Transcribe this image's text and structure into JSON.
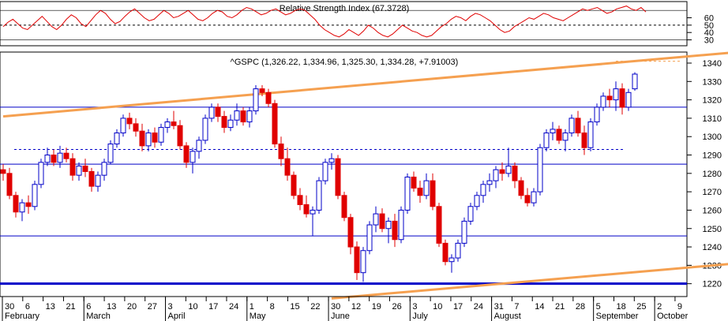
{
  "chart_data": [
    {
      "type": "line",
      "title": "Relative Strength Index (67.3728)",
      "y_ticks": [
        30,
        40,
        50,
        60
      ],
      "ylim": [
        22,
        82
      ],
      "reference_levels": [
        50,
        70,
        30
      ],
      "series": [
        {
          "values": [
            48,
            54,
            58,
            52,
            46,
            44,
            50,
            56,
            62,
            55,
            48,
            44,
            50,
            58,
            64,
            60,
            52,
            48,
            56,
            64,
            70,
            66,
            58,
            52,
            55,
            62,
            68,
            72,
            66,
            60,
            56,
            58,
            64,
            70,
            66,
            60,
            62,
            66,
            70,
            64,
            58,
            56,
            60,
            66,
            70,
            68,
            62,
            60,
            64,
            70,
            74,
            72,
            68,
            64,
            66,
            70,
            72,
            68,
            64,
            66,
            70,
            72,
            70,
            64,
            58,
            50,
            44,
            40,
            36,
            34,
            38,
            44,
            40,
            36,
            42,
            50,
            46,
            40,
            36,
            34,
            38,
            44,
            50,
            46,
            42,
            40,
            36,
            34,
            36,
            42,
            48,
            52,
            58,
            62,
            60,
            56,
            62,
            66,
            64,
            60,
            56,
            50,
            44,
            40,
            42,
            48,
            52,
            56,
            60,
            58,
            62,
            66,
            64,
            60,
            58,
            56,
            60,
            64,
            68,
            72,
            70,
            72,
            74,
            70,
            66,
            68,
            72,
            74,
            76,
            72,
            70,
            74,
            68
          ]
        }
      ]
    },
    {
      "type": "candlestick",
      "title": "^GSPC (1,326.22, 1,334.96, 1,325.30, 1,334.28, +7.91003)",
      "y_ticks": [
        1220,
        1230,
        1240,
        1250,
        1260,
        1270,
        1280,
        1290,
        1300,
        1310,
        1320,
        1330,
        1340
      ],
      "ylim": [
        1213,
        1346
      ],
      "x_tick_labels": [
        "30",
        "6",
        "13",
        "21",
        "6",
        "13",
        "20",
        "27",
        "3",
        "10",
        "17",
        "24",
        "1",
        "8",
        "15",
        "22",
        "30",
        "12",
        "19",
        "26",
        "3",
        "10",
        "17",
        "24",
        "31",
        "7",
        "14",
        "21",
        "28",
        "5",
        "18",
        "25",
        "2",
        "9"
      ],
      "month_labels": [
        "February",
        "March",
        "April",
        "May",
        "June",
        "July",
        "August",
        "September",
        "October"
      ],
      "horizontal_lines": [
        1316,
        1285,
        1246,
        1220
      ],
      "dashed_levels": [
        1293,
        1293
      ],
      "upper_channel": [
        [
          0,
          1311
        ],
        [
          123,
          1348
        ]
      ],
      "lower_channel": [
        [
          52,
          1212
        ],
        [
          163,
          1245
        ]
      ],
      "candles": [
        [
          1282,
          1285,
          1276,
          1280
        ],
        [
          1280,
          1283,
          1266,
          1268
        ],
        [
          1268,
          1270,
          1256,
          1259
        ],
        [
          1259,
          1266,
          1254,
          1264
        ],
        [
          1264,
          1268,
          1258,
          1262
        ],
        [
          1262,
          1276,
          1260,
          1274
        ],
        [
          1274,
          1288,
          1272,
          1286
        ],
        [
          1286,
          1294,
          1284,
          1290
        ],
        [
          1290,
          1293,
          1284,
          1286
        ],
        [
          1286,
          1295,
          1283,
          1291
        ],
        [
          1291,
          1294,
          1286,
          1288
        ],
        [
          1288,
          1291,
          1276,
          1279
        ],
        [
          1279,
          1286,
          1276,
          1284
        ],
        [
          1284,
          1288,
          1278,
          1281
        ],
        [
          1281,
          1283,
          1270,
          1273
        ],
        [
          1273,
          1281,
          1270,
          1279
        ],
        [
          1279,
          1288,
          1276,
          1286
        ],
        [
          1286,
          1298,
          1285,
          1296
        ],
        [
          1296,
          1304,
          1294,
          1302
        ],
        [
          1302,
          1312,
          1300,
          1310
        ],
        [
          1310,
          1313,
          1304,
          1307
        ],
        [
          1307,
          1310,
          1300,
          1303
        ],
        [
          1303,
          1307,
          1292,
          1295
        ],
        [
          1295,
          1304,
          1292,
          1302
        ],
        [
          1302,
          1305,
          1294,
          1297
        ],
        [
          1297,
          1307,
          1295,
          1305
        ],
        [
          1305,
          1310,
          1302,
          1308
        ],
        [
          1308,
          1314,
          1304,
          1306
        ],
        [
          1306,
          1309,
          1293,
          1295
        ],
        [
          1295,
          1297,
          1283,
          1286
        ],
        [
          1286,
          1294,
          1280,
          1292
        ],
        [
          1292,
          1300,
          1288,
          1298
        ],
        [
          1298,
          1312,
          1296,
          1310
        ],
        [
          1310,
          1318,
          1308,
          1316
        ],
        [
          1316,
          1318,
          1308,
          1311
        ],
        [
          1311,
          1314,
          1302,
          1305
        ],
        [
          1305,
          1312,
          1303,
          1309
        ],
        [
          1309,
          1318,
          1306,
          1314
        ],
        [
          1314,
          1316,
          1306,
          1308
        ],
        [
          1308,
          1316,
          1305,
          1314
        ],
        [
          1314,
          1328,
          1312,
          1326
        ],
        [
          1326,
          1328,
          1322,
          1324
        ],
        [
          1324,
          1326,
          1316,
          1318
        ],
        [
          1318,
          1320,
          1294,
          1296
        ],
        [
          1296,
          1300,
          1284,
          1288
        ],
        [
          1288,
          1294,
          1276,
          1279
        ],
        [
          1279,
          1281,
          1266,
          1268
        ],
        [
          1268,
          1272,
          1260,
          1263
        ],
        [
          1263,
          1268,
          1256,
          1258
        ],
        [
          1258,
          1262,
          1246,
          1260
        ],
        [
          1260,
          1278,
          1258,
          1276
        ],
        [
          1276,
          1288,
          1274,
          1286
        ],
        [
          1286,
          1291,
          1282,
          1288
        ],
        [
          1288,
          1290,
          1266,
          1268
        ],
        [
          1268,
          1270,
          1254,
          1256
        ],
        [
          1256,
          1258,
          1236,
          1240
        ],
        [
          1240,
          1243,
          1222,
          1226
        ],
        [
          1226,
          1240,
          1221,
          1238
        ],
        [
          1238,
          1254,
          1236,
          1252
        ],
        [
          1252,
          1262,
          1248,
          1258
        ],
        [
          1258,
          1261,
          1248,
          1250
        ],
        [
          1250,
          1256,
          1242,
          1254
        ],
        [
          1254,
          1258,
          1240,
          1244
        ],
        [
          1244,
          1262,
          1242,
          1260
        ],
        [
          1260,
          1280,
          1258,
          1278
        ],
        [
          1278,
          1281,
          1270,
          1272
        ],
        [
          1272,
          1276,
          1264,
          1268
        ],
        [
          1268,
          1280,
          1266,
          1276
        ],
        [
          1276,
          1280,
          1260,
          1262
        ],
        [
          1262,
          1264,
          1240,
          1242
        ],
        [
          1242,
          1244,
          1230,
          1232
        ],
        [
          1232,
          1236,
          1226,
          1234
        ],
        [
          1234,
          1244,
          1232,
          1242
        ],
        [
          1242,
          1256,
          1240,
          1254
        ],
        [
          1254,
          1264,
          1252,
          1262
        ],
        [
          1262,
          1270,
          1260,
          1268
        ],
        [
          1268,
          1276,
          1264,
          1274
        ],
        [
          1274,
          1280,
          1270,
          1276
        ],
        [
          1276,
          1284,
          1272,
          1282
        ],
        [
          1282,
          1286,
          1276,
          1280
        ],
        [
          1280,
          1294,
          1278,
          1284
        ],
        [
          1284,
          1286,
          1272,
          1276
        ],
        [
          1276,
          1278,
          1266,
          1268
        ],
        [
          1268,
          1272,
          1262,
          1264
        ],
        [
          1264,
          1272,
          1262,
          1270
        ],
        [
          1270,
          1296,
          1268,
          1294
        ],
        [
          1294,
          1304,
          1292,
          1302
        ],
        [
          1302,
          1308,
          1298,
          1304
        ],
        [
          1304,
          1306,
          1296,
          1298
        ],
        [
          1298,
          1304,
          1292,
          1302
        ],
        [
          1302,
          1312,
          1300,
          1310
        ],
        [
          1310,
          1314,
          1300,
          1302
        ],
        [
          1302,
          1306,
          1290,
          1294
        ],
        [
          1294,
          1310,
          1292,
          1308
        ],
        [
          1308,
          1318,
          1306,
          1316
        ],
        [
          1316,
          1324,
          1314,
          1322
        ],
        [
          1322,
          1326,
          1316,
          1320
        ],
        [
          1320,
          1330,
          1314,
          1326
        ],
        [
          1326,
          1329,
          1312,
          1316
        ],
        [
          1316,
          1326,
          1314,
          1324
        ],
        [
          1326,
          1335,
          1325,
          1334
        ]
      ]
    }
  ]
}
